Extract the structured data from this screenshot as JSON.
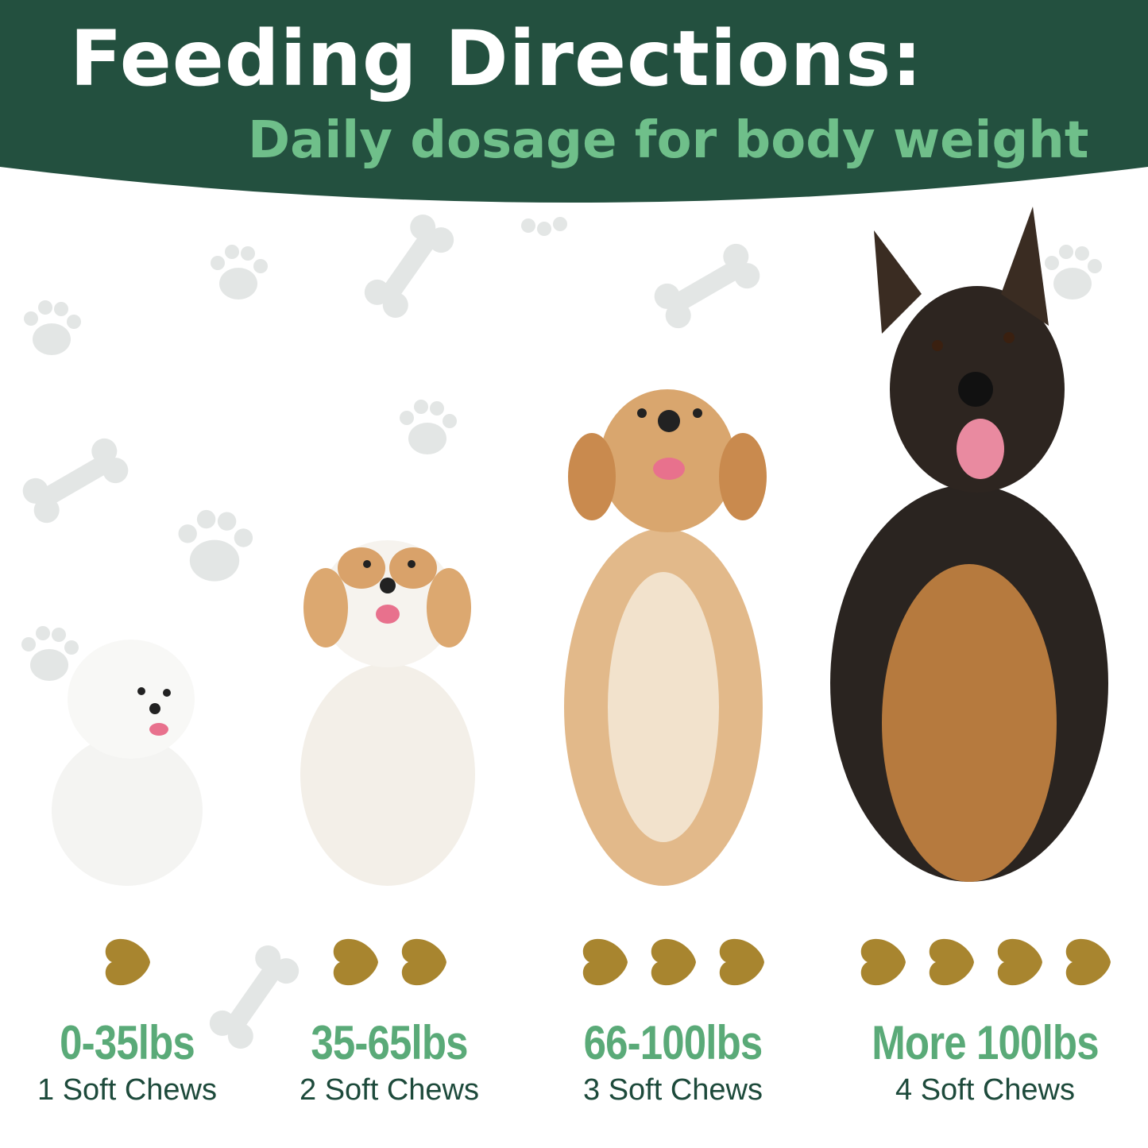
{
  "header": {
    "title": "Feeding Directions:",
    "subtitle": "Daily dosage for body weight",
    "background_color": "#23503f",
    "subtitle_color": "#6fbf8a"
  },
  "dosages": [
    {
      "range": "0-35lbs",
      "dose": "1 Soft Chews",
      "chews": 1,
      "dog": "bichon-puppy"
    },
    {
      "range": "35-65lbs",
      "dose": "2 Soft Chews",
      "chews": 2,
      "dog": "spaniel-puppy"
    },
    {
      "range": "66-100lbs",
      "dose": "3 Soft Chews",
      "chews": 3,
      "dog": "labrador-mix"
    },
    {
      "range": "More 100lbs",
      "dose": "4 Soft Chews",
      "chews": 4,
      "dog": "german-shepherd"
    }
  ],
  "colors": {
    "range_text": "#5aaa78",
    "dose_text": "#1d4a3b",
    "chew": "#a8852f"
  }
}
